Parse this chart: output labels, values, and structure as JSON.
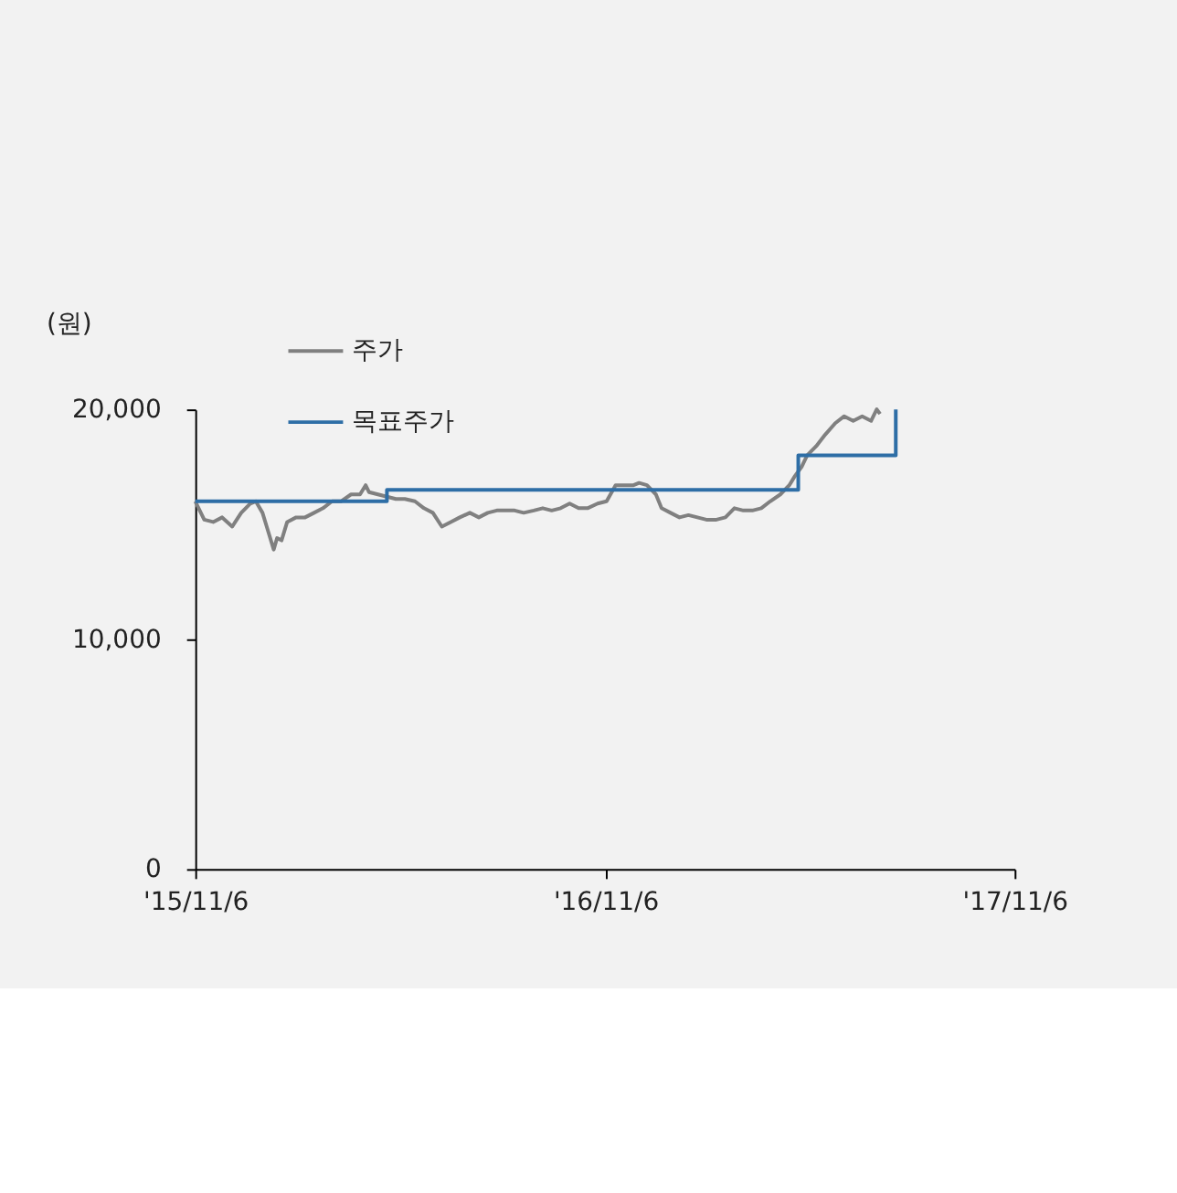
{
  "chart_data": {
    "type": "line",
    "ylabel": "(원)",
    "xlim": [
      "2015-11-06",
      "2017-11-06"
    ],
    "xticks": [
      {
        "value": "2015-11-06",
        "label": "'15/11/6"
      },
      {
        "value": "2016-11-06",
        "label": "'16/11/6"
      },
      {
        "value": "2017-11-06",
        "label": "'17/11/6"
      }
    ],
    "ylim": [
      0,
      20000
    ],
    "yticks": [
      {
        "value": 0,
        "label": "0"
      },
      {
        "value": 10000,
        "label": "10,000"
      },
      {
        "value": 20000,
        "label": "20,000"
      }
    ],
    "grid": false,
    "legend": "top left",
    "series": [
      {
        "name": "주가",
        "type": "line",
        "color": "#808080",
        "x": [
          "2015-11-06",
          "2015-11-14",
          "2015-11-22",
          "2015-11-30",
          "2015-12-09",
          "2015-12-17",
          "2015-12-25",
          "2015-12-30",
          "2016-01-05",
          "2016-01-10",
          "2016-01-15",
          "2016-01-18",
          "2016-01-22",
          "2016-01-27",
          "2016-02-04",
          "2016-02-12",
          "2016-02-20",
          "2016-02-28",
          "2016-03-07",
          "2016-03-15",
          "2016-03-24",
          "2016-04-01",
          "2016-04-06",
          "2016-04-09",
          "2016-04-17",
          "2016-04-25",
          "2016-05-03",
          "2016-05-11",
          "2016-05-20",
          "2016-05-28",
          "2016-06-05",
          "2016-06-13",
          "2016-06-21",
          "2016-06-29",
          "2016-07-08",
          "2016-07-16",
          "2016-07-24",
          "2016-08-01",
          "2016-08-09",
          "2016-08-17",
          "2016-08-25",
          "2016-09-03",
          "2016-09-11",
          "2016-09-19",
          "2016-09-27",
          "2016-10-05",
          "2016-10-13",
          "2016-10-21",
          "2016-10-30",
          "2016-11-07",
          "2016-11-15",
          "2016-11-23",
          "2016-12-01",
          "2016-12-06",
          "2016-12-13",
          "2016-12-21",
          "2016-12-26",
          "2017-01-03",
          "2017-01-11",
          "2017-01-19",
          "2017-01-27",
          "2017-02-04",
          "2017-02-13",
          "2017-02-21",
          "2017-03-01",
          "2017-03-09",
          "2017-03-17",
          "2017-03-25",
          "2017-04-02",
          "2017-04-11",
          "2017-04-19",
          "2017-04-24",
          "2017-04-30",
          "2017-05-05",
          "2017-05-13",
          "2017-05-21",
          "2017-05-30",
          "2017-06-07",
          "2017-06-15",
          "2017-06-23",
          "2017-07-01",
          "2017-07-06",
          "2017-07-09"
        ],
        "values": [
          16000,
          15200,
          15100,
          15300,
          14900,
          15500,
          15900,
          16000,
          15500,
          14700,
          13900,
          14400,
          14300,
          15100,
          15300,
          15300,
          15500,
          15700,
          16000,
          16000,
          16300,
          16300,
          16700,
          16400,
          16300,
          16200,
          16100,
          16100,
          16000,
          15700,
          15500,
          14900,
          15100,
          15300,
          15500,
          15300,
          15500,
          15600,
          15600,
          15600,
          15500,
          15600,
          15700,
          15600,
          15700,
          15900,
          15700,
          15700,
          15900,
          16000,
          16700,
          16700,
          16700,
          16800,
          16700,
          16300,
          15700,
          15500,
          15300,
          15400,
          15300,
          15200,
          15200,
          15300,
          15700,
          15600,
          15600,
          15700,
          16000,
          16300,
          16700,
          17100,
          17500,
          18000,
          18400,
          18900,
          19400,
          19700,
          19500,
          19700,
          19500,
          20000,
          19800
        ]
      },
      {
        "name": "목표주가",
        "type": "step",
        "color": "#2e6ea6",
        "x": [
          "2015-11-06",
          "2016-04-25",
          "2017-04-27",
          "2017-07-23"
        ],
        "values": [
          16000,
          16500,
          18000,
          20000
        ]
      }
    ]
  }
}
